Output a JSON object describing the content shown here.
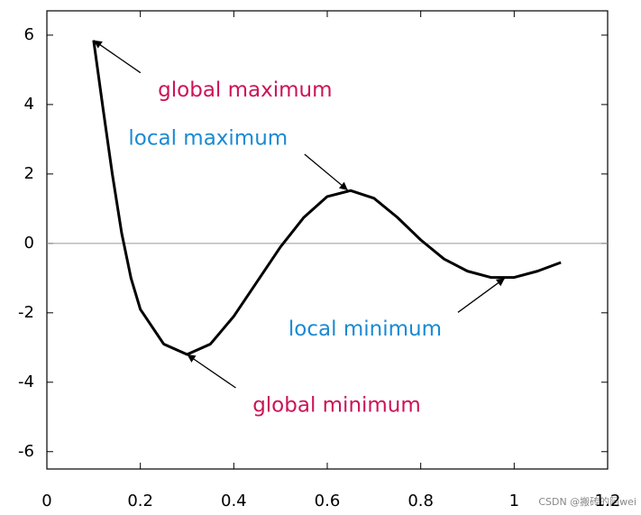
{
  "chart_data": {
    "type": "line",
    "x": [
      0.1,
      0.12,
      0.14,
      0.16,
      0.18,
      0.2,
      0.25,
      0.3,
      0.35,
      0.4,
      0.45,
      0.5,
      0.55,
      0.6,
      0.65,
      0.7,
      0.75,
      0.8,
      0.85,
      0.9,
      0.95,
      1.0,
      1.05,
      1.1
    ],
    "series": [
      {
        "color": "#000000",
        "values": [
          5.85,
          3.9,
          2.0,
          0.3,
          -1.0,
          -1.9,
          -2.9,
          -3.2,
          -2.9,
          -2.1,
          -1.1,
          -0.1,
          0.75,
          1.35,
          1.52,
          1.3,
          0.75,
          0.1,
          -0.45,
          -0.8,
          -0.98,
          -0.98,
          -0.8,
          -0.55
        ]
      }
    ],
    "xlim": [
      0,
      1.2
    ],
    "xticks": [
      0,
      0.2,
      0.4,
      0.6,
      0.8,
      1,
      1.2
    ],
    "ylim": [
      -6.5,
      6.7
    ],
    "yticks": [
      -6,
      -4,
      -2,
      0,
      2,
      4,
      6
    ],
    "hline": 0,
    "annotations": [
      {
        "text": "global maximum",
        "x": 0.1,
        "y": 5.85,
        "color": "#cc1456"
      },
      {
        "text": "local maximum",
        "x": 0.644,
        "y": 1.53,
        "color": "#1a8ad4"
      },
      {
        "text": "local minimum",
        "x": 0.98,
        "y": -1.0,
        "color": "#1a8ad4"
      },
      {
        "text": "global minimum",
        "x": 0.3,
        "y": -3.2,
        "color": "#cc1456"
      }
    ],
    "watermark": "CSDN @搬砖的阿wei"
  }
}
